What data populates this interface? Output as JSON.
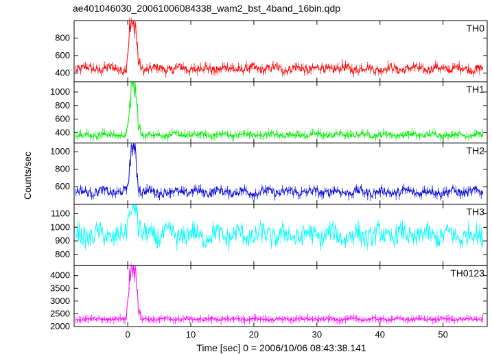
{
  "chart_data": {
    "type": "line",
    "title": "ae401046030_20061006084338_wam2_bst_4band_16bin.qdp",
    "xlabel": "Time [sec] 0 = 2006/10/06 08:43:38.141",
    "ylabel": "Counts/sec",
    "xlim": [
      -8.5,
      57
    ],
    "xticks": [
      0,
      10,
      20,
      30,
      40,
      50
    ],
    "grid": false,
    "panels": [
      {
        "name": "TH0",
        "color": "#ff0000",
        "ylim": [
          300,
          1000
        ],
        "yticks": [
          400,
          600,
          800
        ],
        "baseline": 450,
        "noise": 45,
        "burst": [
          [
            0.0,
            0.35
          ],
          [
            0.3,
            1.05
          ],
          [
            0.6,
            1.2
          ],
          [
            0.9,
            1.15
          ],
          [
            1.2,
            1.2
          ],
          [
            1.5,
            0.5
          ],
          [
            1.9,
            0.15
          ]
        ],
        "series": [
          {
            "x": -8,
            "y": 440
          },
          {
            "x": -5,
            "y": 450
          },
          {
            "x": -2,
            "y": 445
          },
          {
            "x": -0.5,
            "y": 470
          },
          {
            "x": 0.3,
            "y": 880
          },
          {
            "x": 0.6,
            "y": 930
          },
          {
            "x": 1.2,
            "y": 970
          },
          {
            "x": 1.8,
            "y": 620
          },
          {
            "x": 3,
            "y": 460
          },
          {
            "x": 10,
            "y": 455
          },
          {
            "x": 20,
            "y": 450
          },
          {
            "x": 30,
            "y": 460
          },
          {
            "x": 40,
            "y": 455
          },
          {
            "x": 50,
            "y": 450
          },
          {
            "x": 56,
            "y": 445
          }
        ]
      },
      {
        "name": "TH1",
        "color": "#00ee00",
        "ylim": [
          250,
          1150
        ],
        "yticks": [
          400,
          600,
          800,
          1000
        ],
        "baseline": 370,
        "noise": 35,
        "burst": [
          [
            0.0,
            0.15
          ],
          [
            0.3,
            0.6
          ],
          [
            0.6,
            1.1
          ],
          [
            0.9,
            1.25
          ],
          [
            1.2,
            1.1
          ],
          [
            1.5,
            0.6
          ],
          [
            1.9,
            0.2
          ]
        ],
        "series": [
          {
            "x": -8,
            "y": 370
          },
          {
            "x": -2,
            "y": 365
          },
          {
            "x": 0.6,
            "y": 900
          },
          {
            "x": 0.9,
            "y": 1100
          },
          {
            "x": 1.2,
            "y": 1000
          },
          {
            "x": 1.9,
            "y": 500
          },
          {
            "x": 10,
            "y": 365
          },
          {
            "x": 30,
            "y": 370
          },
          {
            "x": 56,
            "y": 365
          }
        ]
      },
      {
        "name": "TH2",
        "color": "#0000dd",
        "ylim": [
          400,
          1100
        ],
        "yticks": [
          600,
          800,
          1000
        ],
        "baseline": 540,
        "noise": 45,
        "burst": [
          [
            0.0,
            0.15
          ],
          [
            0.3,
            0.5
          ],
          [
            0.6,
            1.1
          ],
          [
            0.9,
            1.2
          ],
          [
            1.2,
            1.2
          ],
          [
            1.5,
            0.4
          ],
          [
            1.9,
            0.1
          ]
        ],
        "series": [
          {
            "x": -8,
            "y": 540
          },
          {
            "x": -2,
            "y": 545
          },
          {
            "x": 0.6,
            "y": 1000
          },
          {
            "x": 1.0,
            "y": 1100
          },
          {
            "x": 1.4,
            "y": 1100
          },
          {
            "x": 2,
            "y": 600
          },
          {
            "x": 10,
            "y": 545
          },
          {
            "x": 30,
            "y": 540
          },
          {
            "x": 56,
            "y": 540
          }
        ]
      },
      {
        "name": "TH3",
        "color": "#00ffff",
        "ylim": [
          720,
          1170
        ],
        "yticks": [
          800,
          900,
          1000,
          1100
        ],
        "baseline": 940,
        "noise": 70,
        "burst": [
          [
            0.0,
            0.5
          ],
          [
            0.3,
            1.0
          ],
          [
            0.6,
            0.8
          ],
          [
            0.9,
            1.2
          ],
          [
            1.2,
            1.4
          ],
          [
            1.5,
            0.9
          ],
          [
            1.9,
            0.3
          ]
        ],
        "series": [
          {
            "x": -8,
            "y": 930
          },
          {
            "x": -2,
            "y": 940
          },
          {
            "x": 0.3,
            "y": 1120
          },
          {
            "x": 1.2,
            "y": 1160
          },
          {
            "x": 10,
            "y": 940
          },
          {
            "x": 30,
            "y": 945
          },
          {
            "x": 56,
            "y": 935
          }
        ]
      },
      {
        "name": "TH0123",
        "color": "#ff00ff",
        "ylim": [
          2000,
          4400
        ],
        "yticks": [
          2000,
          2500,
          3000,
          3500,
          4000
        ],
        "baseline": 2290,
        "noise": 55,
        "burst": [
          [
            0.0,
            0.4
          ],
          [
            0.3,
            0.9
          ],
          [
            0.6,
            1.3
          ],
          [
            0.9,
            1.1
          ],
          [
            1.2,
            1.3
          ],
          [
            1.5,
            0.6
          ],
          [
            1.9,
            0.15
          ]
        ],
        "series": [
          {
            "x": -8,
            "y": 2200
          },
          {
            "x": -2,
            "y": 2280
          },
          {
            "x": 0.3,
            "y": 3500
          },
          {
            "x": 0.9,
            "y": 4100
          },
          {
            "x": 1.2,
            "y": 4300
          },
          {
            "x": 1.9,
            "y": 2700
          },
          {
            "x": 10,
            "y": 2300
          },
          {
            "x": 30,
            "y": 2290
          },
          {
            "x": 56,
            "y": 2350
          }
        ]
      }
    ]
  }
}
